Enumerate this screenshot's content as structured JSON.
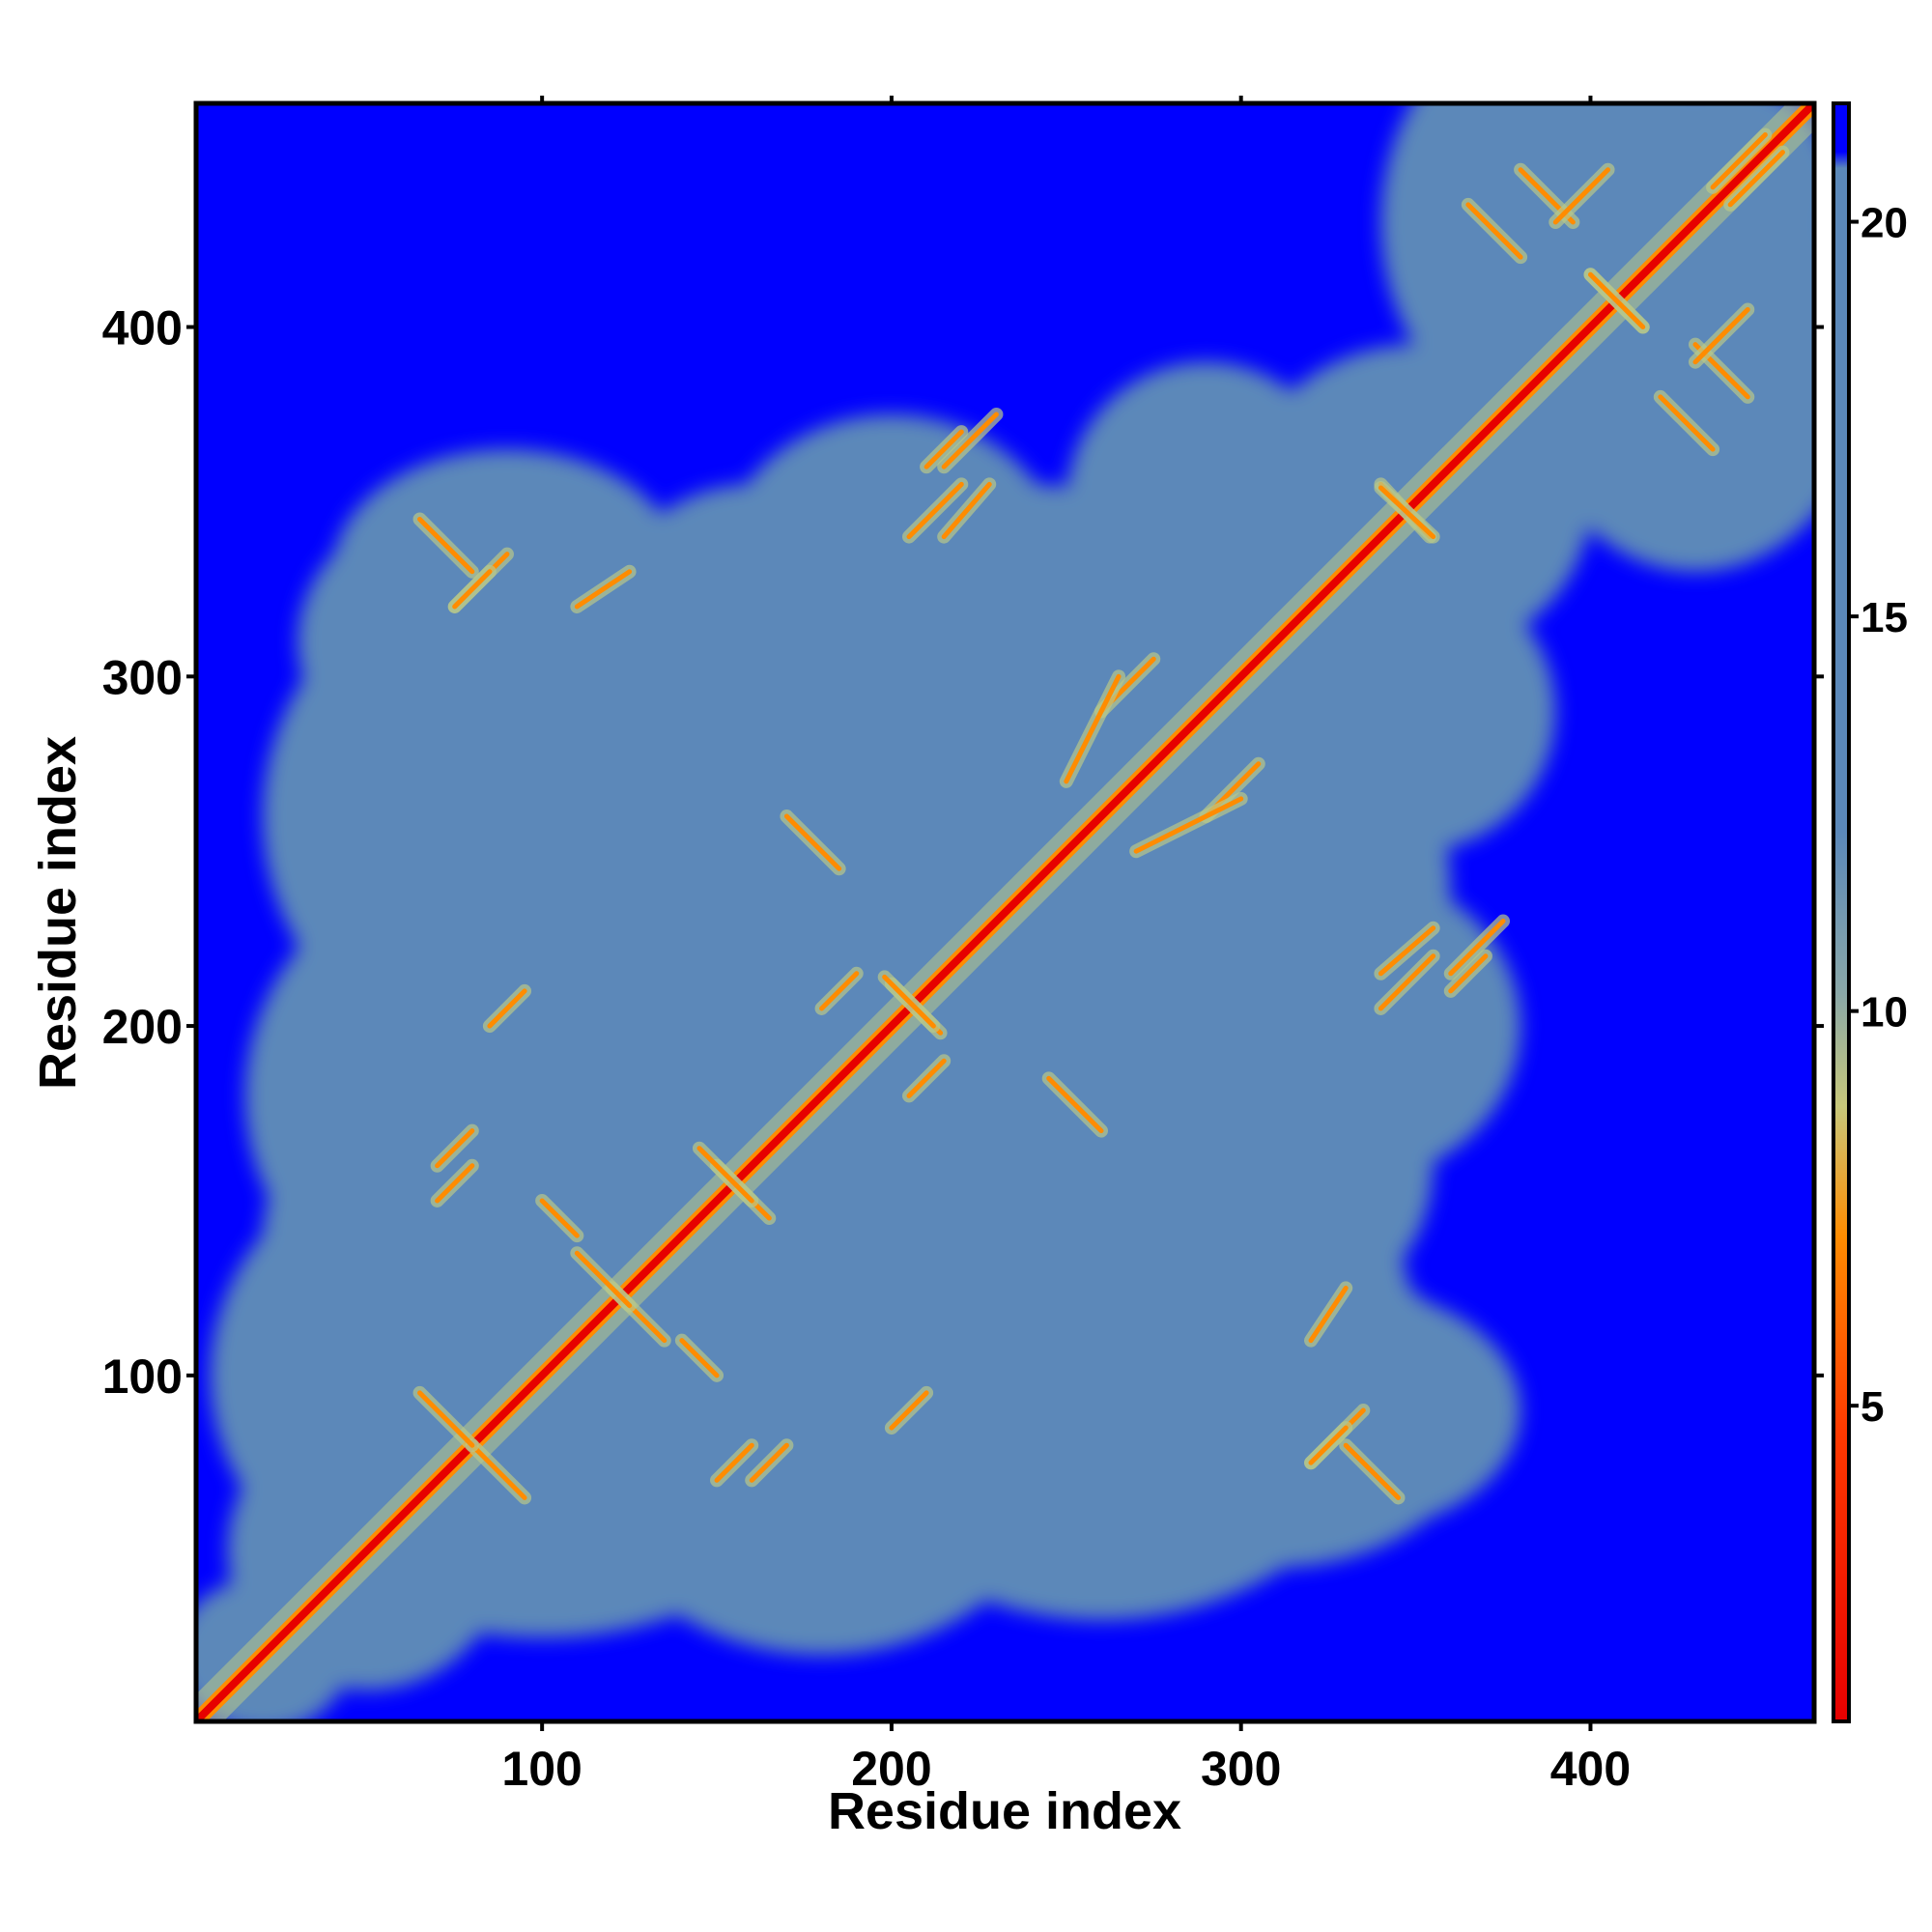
{
  "chart_data": {
    "type": "heatmap",
    "title": "",
    "xlabel": "Residue index",
    "ylabel": "Residue index",
    "xlim": [
      1,
      464
    ],
    "ylim": [
      1,
      464
    ],
    "x_ticks": [
      100,
      200,
      300,
      400
    ],
    "y_ticks": [
      100,
      200,
      300,
      400
    ],
    "n_residues": 464,
    "colorbar": {
      "ticks": [
        5,
        10,
        15,
        20
      ],
      "range": [
        1,
        21.5
      ],
      "colors": {
        "contact": "#e60000",
        "near": "#ff8c00",
        "mid": "#b8c88a",
        "far": "#5b88b9",
        "background": "#0000ff"
      }
    },
    "legend": "right (colorbar)",
    "grid": false
  }
}
